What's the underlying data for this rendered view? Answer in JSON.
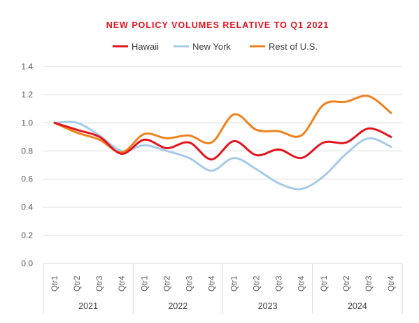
{
  "chart_data": {
    "type": "line",
    "title": "NEW POLICY VOLUMES RELATIVE TO Q1 2021",
    "title_color": "#e8101d",
    "categories": [
      "Qtr1",
      "Qtr2",
      "Qtr3",
      "Qtr4",
      "Qtr1",
      "Qtr2",
      "Qtr3",
      "Qtr4",
      "Qtr1",
      "Qtr2",
      "Qtr3",
      "Qtr4",
      "Qtr1",
      "Qtr2",
      "Qtr3",
      "Qtr4"
    ],
    "groups": [
      {
        "label": "2021",
        "count": 4
      },
      {
        "label": "2022",
        "count": 4
      },
      {
        "label": "2023",
        "count": 4
      },
      {
        "label": "2024",
        "count": 4
      }
    ],
    "ylim": [
      0,
      1.4
    ],
    "yticks": [
      "0.0",
      "0.2",
      "0.4",
      "0.6",
      "0.8",
      "1.0",
      "1.2",
      "1.4"
    ],
    "grid": true,
    "legend_position": "top",
    "series": [
      {
        "name": "Hawaii",
        "color": "#e3141d",
        "values": [
          1.0,
          0.95,
          0.9,
          0.78,
          0.88,
          0.82,
          0.86,
          0.74,
          0.87,
          0.77,
          0.81,
          0.75,
          0.86,
          0.86,
          0.96,
          0.9
        ]
      },
      {
        "name": "New York",
        "color": "#a5cbe9",
        "values": [
          1.0,
          1.0,
          0.91,
          0.8,
          0.84,
          0.8,
          0.75,
          0.66,
          0.75,
          0.67,
          0.57,
          0.53,
          0.62,
          0.78,
          0.89,
          0.83
        ]
      },
      {
        "name": "Rest of U.S.",
        "color": "#f0821e",
        "values": [
          1.0,
          0.93,
          0.88,
          0.79,
          0.92,
          0.89,
          0.91,
          0.86,
          1.06,
          0.95,
          0.94,
          0.91,
          1.13,
          1.15,
          1.19,
          1.07
        ]
      }
    ]
  }
}
